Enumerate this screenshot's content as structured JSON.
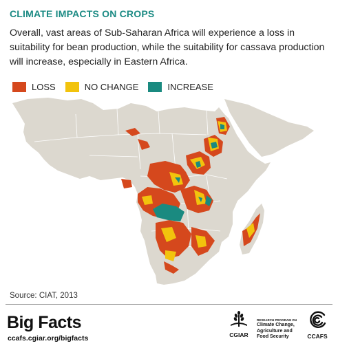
{
  "header": {
    "title": "CLIMATE IMPACTS ON CROPS",
    "subtitle": "Overall, vast areas of Sub-Saharan Africa will experience a loss in suitability for bean production, while the suitability for cassava production will increase, especially in Eastern Africa."
  },
  "legend": {
    "items": [
      {
        "label": "LOSS",
        "color": "#d5481d"
      },
      {
        "label": "NO CHANGE",
        "color": "#f2c30d"
      },
      {
        "label": "INCREASE",
        "color": "#1a8a80"
      }
    ]
  },
  "map": {
    "land_color": "#dcd8cf",
    "sea_color": "#ffffff",
    "border_color": "#ffffff"
  },
  "source": "Source: CIAT, 2013",
  "footer": {
    "brand": "Big Facts",
    "url": "ccafs.cgiar.org/bigfacts",
    "cgiar_label": "CGIAR",
    "program_small": "RESEARCH PROGRAM ON",
    "program_name": "Climate Change, Agriculture and Food Security",
    "ccafs_label": "CCAFS"
  }
}
